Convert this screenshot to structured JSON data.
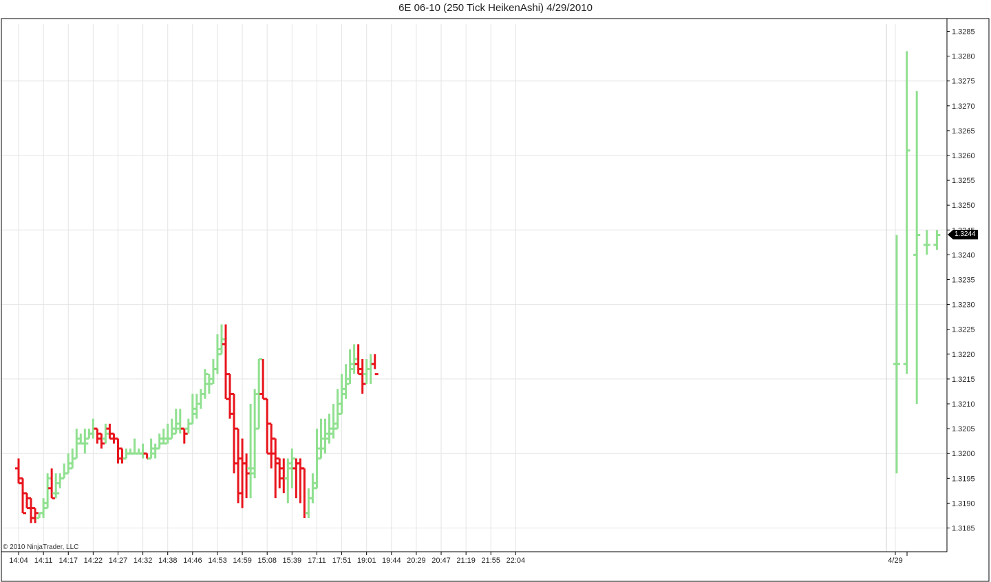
{
  "title": "6E 06-10 (250 Tick HeikenAshi)  4/29/2010",
  "copyright": "© 2010 NinjaTrader, LLC",
  "last_price_label": "1.3244",
  "colors": {
    "up": "#90e090",
    "down": "#e8141c",
    "grid": "#e4e4e4",
    "axis": "#000000"
  },
  "chart_data": {
    "type": "ohlc",
    "title": "6E 06-10 (250 Tick HeikenAshi)  4/29/2010",
    "ylim": [
      1.318,
      1.329
    ],
    "y_ticks": [
      "1.3185",
      "1.3190",
      "1.3195",
      "1.3200",
      "1.3205",
      "1.3210",
      "1.3215",
      "1.3220",
      "1.3225",
      "1.3230",
      "1.3235",
      "1.3240",
      "1.3245",
      "1.3250",
      "1.3255",
      "1.3260",
      "1.3265",
      "1.3270",
      "1.3275",
      "1.3280",
      "1.3285"
    ],
    "x_labels": [
      {
        "bar": 0,
        "label": "14:04"
      },
      {
        "bar": 6,
        "label": "14:11"
      },
      {
        "bar": 12,
        "label": "14:17"
      },
      {
        "bar": 18,
        "label": "14:22"
      },
      {
        "bar": 24,
        "label": "14:27"
      },
      {
        "bar": 30,
        "label": "14:32"
      },
      {
        "bar": 36,
        "label": "14:38"
      },
      {
        "bar": 42,
        "label": "14:46"
      },
      {
        "bar": 48,
        "label": "14:53"
      },
      {
        "bar": 54,
        "label": "14:59"
      },
      {
        "bar": 60,
        "label": "15:08"
      },
      {
        "bar": 66,
        "label": "15:39"
      },
      {
        "bar": 72,
        "label": "17:11"
      },
      {
        "bar": 78,
        "label": "17:51"
      },
      {
        "bar": 84,
        "label": "19:01"
      },
      {
        "bar": 90,
        "label": "19:44"
      },
      {
        "bar": 96,
        "label": "20:29"
      },
      {
        "bar": 102,
        "label": "20:47"
      },
      {
        "bar": 108,
        "label": "21:19"
      },
      {
        "bar": 114,
        "label": "21:55"
      },
      {
        "bar": 120,
        "label": "22:04"
      },
      {
        "bar": 127,
        "label": "4/29"
      }
    ],
    "session_break_bar": 126.8,
    "last_price": 1.3244,
    "bars": [
      {
        "o": 1.3197,
        "h": 1.3199,
        "l": 1.3194,
        "c": 1.3194,
        "dir": "down"
      },
      {
        "o": 1.3195,
        "h": 1.3195,
        "l": 1.3188,
        "c": 1.3188,
        "dir": "down"
      },
      {
        "o": 1.3192,
        "h": 1.3192,
        "l": 1.3189,
        "c": 1.3189,
        "dir": "down"
      },
      {
        "o": 1.3191,
        "h": 1.3191,
        "l": 1.3186,
        "c": 1.3187,
        "dir": "down"
      },
      {
        "o": 1.3189,
        "h": 1.3189,
        "l": 1.3186,
        "c": 1.3188,
        "dir": "down"
      },
      {
        "o": 1.3187,
        "h": 1.3188,
        "l": 1.3187,
        "c": 1.3188,
        "dir": "up"
      },
      {
        "o": 1.3188,
        "h": 1.3191,
        "l": 1.3187,
        "c": 1.319,
        "dir": "up"
      },
      {
        "o": 1.3189,
        "h": 1.3196,
        "l": 1.3189,
        "c": 1.3195,
        "dir": "up"
      },
      {
        "o": 1.3193,
        "h": 1.3197,
        "l": 1.3191,
        "c": 1.3191,
        "dir": "down"
      },
      {
        "o": 1.3192,
        "h": 1.3196,
        "l": 1.3191,
        "c": 1.3192,
        "dir": "up"
      },
      {
        "o": 1.3194,
        "h": 1.3196,
        "l": 1.3193,
        "c": 1.3195,
        "dir": "up"
      },
      {
        "o": 1.3195,
        "h": 1.3198,
        "l": 1.3195,
        "c": 1.3196,
        "dir": "up"
      },
      {
        "o": 1.3196,
        "h": 1.32,
        "l": 1.3196,
        "c": 1.3198,
        "dir": "up"
      },
      {
        "o": 1.3197,
        "h": 1.3201,
        "l": 1.3197,
        "c": 1.3199,
        "dir": "up"
      },
      {
        "o": 1.3199,
        "h": 1.3205,
        "l": 1.3199,
        "c": 1.3203,
        "dir": "up"
      },
      {
        "o": 1.3202,
        "h": 1.3204,
        "l": 1.3202,
        "c": 1.3202,
        "dir": "up"
      },
      {
        "o": 1.3202,
        "h": 1.3205,
        "l": 1.32,
        "c": 1.3202,
        "dir": "up"
      },
      {
        "o": 1.3203,
        "h": 1.3205,
        "l": 1.3203,
        "c": 1.3204,
        "dir": "up"
      },
      {
        "o": 1.3204,
        "h": 1.3207,
        "l": 1.3203,
        "c": 1.3205,
        "dir": "up"
      },
      {
        "o": 1.3205,
        "h": 1.3205,
        "l": 1.3202,
        "c": 1.3203,
        "dir": "down"
      },
      {
        "o": 1.3204,
        "h": 1.3204,
        "l": 1.3201,
        "c": 1.3202,
        "dir": "down"
      },
      {
        "o": 1.3203,
        "h": 1.3206,
        "l": 1.3202,
        "c": 1.3204,
        "dir": "up"
      },
      {
        "o": 1.3205,
        "h": 1.3206,
        "l": 1.3203,
        "c": 1.3203,
        "dir": "down"
      },
      {
        "o": 1.3204,
        "h": 1.3204,
        "l": 1.3202,
        "c": 1.3203,
        "dir": "down"
      },
      {
        "o": 1.3203,
        "h": 1.3203,
        "l": 1.3198,
        "c": 1.3199,
        "dir": "down"
      },
      {
        "o": 1.3201,
        "h": 1.3201,
        "l": 1.3198,
        "c": 1.3199,
        "dir": "down"
      },
      {
        "o": 1.3199,
        "h": 1.3201,
        "l": 1.3199,
        "c": 1.32,
        "dir": "up"
      },
      {
        "o": 1.32,
        "h": 1.3201,
        "l": 1.32,
        "c": 1.32,
        "dir": "up"
      },
      {
        "o": 1.32,
        "h": 1.3203,
        "l": 1.32,
        "c": 1.32,
        "dir": "up"
      },
      {
        "o": 1.32,
        "h": 1.3201,
        "l": 1.32,
        "c": 1.32,
        "dir": "up"
      },
      {
        "o": 1.32,
        "h": 1.3202,
        "l": 1.3199,
        "c": 1.32,
        "dir": "up"
      },
      {
        "o": 1.32,
        "h": 1.32,
        "l": 1.3199,
        "c": 1.3199,
        "dir": "down"
      },
      {
        "o": 1.3199,
        "h": 1.3203,
        "l": 1.3199,
        "c": 1.3201,
        "dir": "up"
      },
      {
        "o": 1.32,
        "h": 1.3202,
        "l": 1.3199,
        "c": 1.3201,
        "dir": "up"
      },
      {
        "o": 1.3201,
        "h": 1.3204,
        "l": 1.3201,
        "c": 1.3203,
        "dir": "up"
      },
      {
        "o": 1.3202,
        "h": 1.3205,
        "l": 1.3202,
        "c": 1.3202,
        "dir": "up"
      },
      {
        "o": 1.3203,
        "h": 1.3206,
        "l": 1.3202,
        "c": 1.3203,
        "dir": "up"
      },
      {
        "o": 1.3203,
        "h": 1.3207,
        "l": 1.3203,
        "c": 1.3205,
        "dir": "up"
      },
      {
        "o": 1.3204,
        "h": 1.3209,
        "l": 1.3204,
        "c": 1.3206,
        "dir": "up"
      },
      {
        "o": 1.3205,
        "h": 1.3209,
        "l": 1.3204,
        "c": 1.3205,
        "dir": "up"
      },
      {
        "o": 1.3205,
        "h": 1.3205,
        "l": 1.3202,
        "c": 1.3204,
        "dir": "down"
      },
      {
        "o": 1.3205,
        "h": 1.3207,
        "l": 1.3204,
        "c": 1.3206,
        "dir": "up"
      },
      {
        "o": 1.3206,
        "h": 1.3212,
        "l": 1.3206,
        "c": 1.3209,
        "dir": "up"
      },
      {
        "o": 1.3208,
        "h": 1.3212,
        "l": 1.3207,
        "c": 1.321,
        "dir": "up"
      },
      {
        "o": 1.321,
        "h": 1.3213,
        "l": 1.3209,
        "c": 1.3212,
        "dir": "up"
      },
      {
        "o": 1.3212,
        "h": 1.3217,
        "l": 1.3211,
        "c": 1.3216,
        "dir": "up"
      },
      {
        "o": 1.3214,
        "h": 1.3216,
        "l": 1.3212,
        "c": 1.3214,
        "dir": "up"
      },
      {
        "o": 1.3215,
        "h": 1.3219,
        "l": 1.3214,
        "c": 1.3217,
        "dir": "up"
      },
      {
        "o": 1.3217,
        "h": 1.3224,
        "l": 1.3216,
        "c": 1.3221,
        "dir": "up"
      },
      {
        "o": 1.322,
        "h": 1.3226,
        "l": 1.322,
        "c": 1.3223,
        "dir": "up"
      },
      {
        "o": 1.3222,
        "h": 1.3226,
        "l": 1.3211,
        "c": 1.3211,
        "dir": "down"
      },
      {
        "o": 1.3216,
        "h": 1.3216,
        "l": 1.3207,
        "c": 1.3208,
        "dir": "down"
      },
      {
        "o": 1.3212,
        "h": 1.3212,
        "l": 1.3196,
        "c": 1.3198,
        "dir": "down"
      },
      {
        "o": 1.3205,
        "h": 1.3205,
        "l": 1.319,
        "c": 1.3192,
        "dir": "down"
      },
      {
        "o": 1.3199,
        "h": 1.3203,
        "l": 1.3189,
        "c": 1.3198,
        "dir": "down"
      },
      {
        "o": 1.3198,
        "h": 1.32,
        "l": 1.3191,
        "c": 1.3196,
        "dir": "down"
      },
      {
        "o": 1.3197,
        "h": 1.321,
        "l": 1.3191,
        "c": 1.3197,
        "dir": "up"
      },
      {
        "o": 1.3196,
        "h": 1.3213,
        "l": 1.3195,
        "c": 1.3212,
        "dir": "up"
      },
      {
        "o": 1.3205,
        "h": 1.3219,
        "l": 1.3205,
        "c": 1.3219,
        "dir": "up"
      },
      {
        "o": 1.3212,
        "h": 1.3219,
        "l": 1.3211,
        "c": 1.3211,
        "dir": "down"
      },
      {
        "o": 1.3211,
        "h": 1.3211,
        "l": 1.32,
        "c": 1.32,
        "dir": "down"
      },
      {
        "o": 1.3206,
        "h": 1.3206,
        "l": 1.3197,
        "c": 1.32,
        "dir": "down"
      },
      {
        "o": 1.3203,
        "h": 1.3203,
        "l": 1.3191,
        "c": 1.3198,
        "dir": "down"
      },
      {
        "o": 1.3199,
        "h": 1.3199,
        "l": 1.3193,
        "c": 1.3195,
        "dir": "down"
      },
      {
        "o": 1.3197,
        "h": 1.3199,
        "l": 1.3192,
        "c": 1.3195,
        "dir": "down"
      },
      {
        "o": 1.3195,
        "h": 1.3199,
        "l": 1.319,
        "c": 1.3198,
        "dir": "up"
      },
      {
        "o": 1.3197,
        "h": 1.3201,
        "l": 1.3193,
        "c": 1.3199,
        "dir": "up"
      },
      {
        "o": 1.3197,
        "h": 1.3199,
        "l": 1.3191,
        "c": 1.3198,
        "dir": "down"
      },
      {
        "o": 1.3198,
        "h": 1.3199,
        "l": 1.319,
        "c": 1.3197,
        "dir": "down"
      },
      {
        "o": 1.3197,
        "h": 1.3197,
        "l": 1.3187,
        "c": 1.3188,
        "dir": "down"
      },
      {
        "o": 1.3188,
        "h": 1.3193,
        "l": 1.3187,
        "c": 1.3191,
        "dir": "up"
      },
      {
        "o": 1.3191,
        "h": 1.3196,
        "l": 1.319,
        "c": 1.3194,
        "dir": "up"
      },
      {
        "o": 1.3193,
        "h": 1.3205,
        "l": 1.3193,
        "c": 1.3201,
        "dir": "up"
      },
      {
        "o": 1.3199,
        "h": 1.3207,
        "l": 1.3199,
        "c": 1.3203,
        "dir": "up"
      },
      {
        "o": 1.3201,
        "h": 1.3207,
        "l": 1.32,
        "c": 1.3204,
        "dir": "up"
      },
      {
        "o": 1.3203,
        "h": 1.3208,
        "l": 1.3202,
        "c": 1.3205,
        "dir": "up"
      },
      {
        "o": 1.3204,
        "h": 1.321,
        "l": 1.3203,
        "c": 1.3206,
        "dir": "up"
      },
      {
        "o": 1.3205,
        "h": 1.3213,
        "l": 1.3205,
        "c": 1.321,
        "dir": "up"
      },
      {
        "o": 1.3208,
        "h": 1.3216,
        "l": 1.3208,
        "c": 1.3213,
        "dir": "up"
      },
      {
        "o": 1.3212,
        "h": 1.3218,
        "l": 1.3211,
        "c": 1.3214,
        "dir": "up"
      },
      {
        "o": 1.3215,
        "h": 1.3221,
        "l": 1.3214,
        "c": 1.3218,
        "dir": "up"
      },
      {
        "o": 1.3217,
        "h": 1.3222,
        "l": 1.3216,
        "c": 1.3219,
        "dir": "up"
      },
      {
        "o": 1.3218,
        "h": 1.3222,
        "l": 1.3216,
        "c": 1.3216,
        "dir": "down"
      },
      {
        "o": 1.3217,
        "h": 1.3219,
        "l": 1.3212,
        "c": 1.3214,
        "dir": "down"
      },
      {
        "o": 1.3216,
        "h": 1.3219,
        "l": 1.3214,
        "c": 1.3217,
        "dir": "up"
      },
      {
        "o": 1.3217,
        "h": 1.322,
        "l": 1.3214,
        "c": 1.3218,
        "dir": "up"
      },
      {
        "o": 1.3218,
        "h": 1.322,
        "l": 1.3217,
        "c": 1.3216,
        "dir": "down"
      },
      {
        "o": 1.3218,
        "h": 1.3244,
        "l": 1.3196,
        "c": 1.3218,
        "dir": "up"
      },
      {
        "o": 1.3218,
        "h": 1.3281,
        "l": 1.3216,
        "c": 1.3261,
        "dir": "up"
      },
      {
        "o": 1.324,
        "h": 1.3273,
        "l": 1.321,
        "c": 1.3244,
        "dir": "up"
      },
      {
        "o": 1.3242,
        "h": 1.3245,
        "l": 1.324,
        "c": 1.3242,
        "dir": "up"
      },
      {
        "o": 1.3242,
        "h": 1.3245,
        "l": 1.3241,
        "c": 1.3244,
        "dir": "up"
      }
    ]
  }
}
